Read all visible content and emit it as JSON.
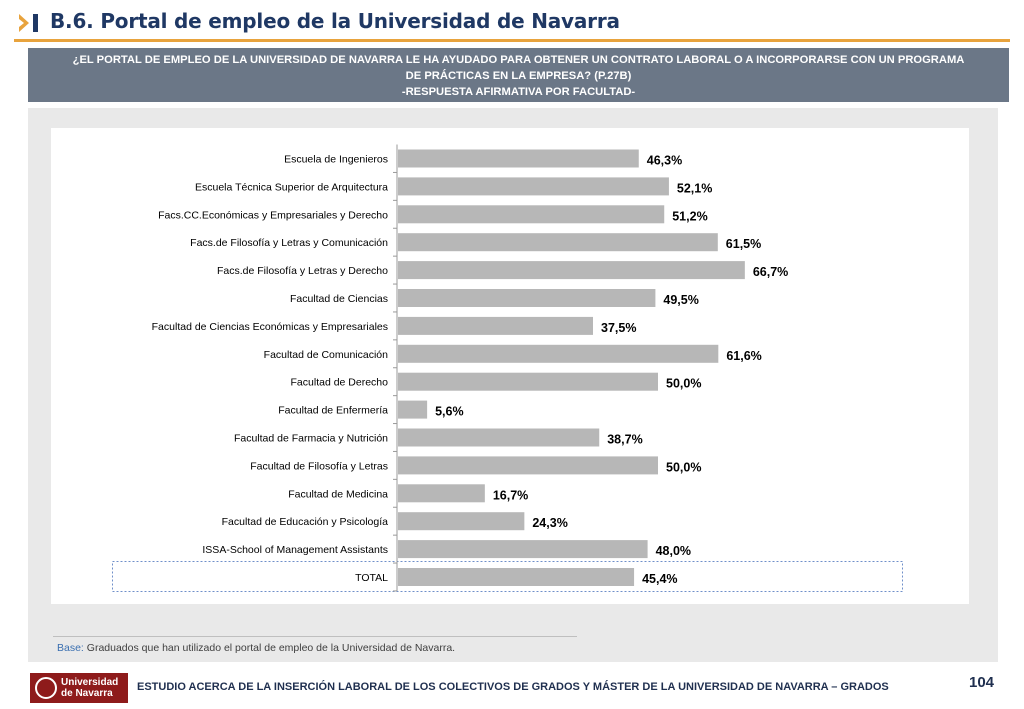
{
  "header": {
    "title": "B.6. Portal de empleo de la Universidad de Navarra"
  },
  "question": {
    "line1": "¿EL PORTAL DE EMPLEO DE LA UNIVERSIDAD DE NAVARRA LE HA AYUDADO PARA OBTENER UN CONTRATO LABORAL O A INCORPORARSE CON UN PROGRAMA",
    "line2": "DE PRÁCTICAS EN LA EMPRESA? (P.27B)",
    "line3": "-RESPUESTA AFIRMATIVA POR FACULTAD-"
  },
  "chart_data": {
    "type": "bar",
    "orientation": "horizontal",
    "categories": [
      "Escuela de Ingenieros",
      "Escuela Técnica Superior de Arquitectura",
      "Facs.CC.Económicas y Empresariales y Derecho",
      "Facs.de Filosofía y Letras y Comunicación",
      "Facs.de Filosofía y Letras y Derecho",
      "Facultad de Ciencias",
      "Facultad de Ciencias Económicas y Empresariales",
      "Facultad de Comunicación",
      "Facultad de Derecho",
      "Facultad de Enfermería",
      "Facultad de Farmacia y Nutrición",
      "Facultad de Filosofía y Letras",
      "Facultad de Medicina",
      "Facultad de Educación y Psicología",
      "ISSA-School of Management Assistants",
      "TOTAL"
    ],
    "values": [
      46.3,
      52.1,
      51.2,
      61.5,
      66.7,
      49.5,
      37.5,
      61.6,
      50.0,
      5.6,
      38.7,
      50.0,
      16.7,
      24.3,
      48.0,
      45.4
    ],
    "labels": [
      "46,3%",
      "52,1%",
      "51,2%",
      "61,5%",
      "66,7%",
      "49,5%",
      "37,5%",
      "61,6%",
      "50,0%",
      "5,6%",
      "38,7%",
      "50,0%",
      "16,7%",
      "24,3%",
      "48,0%",
      "45,4%"
    ],
    "xlim": [
      0,
      100
    ],
    "grid": false,
    "legend": "none",
    "bar_color": "#b7b7b7"
  },
  "base_note": {
    "label": "Base:",
    "text": " Graduados que han utilizado el portal de empleo de la Universidad de Navarra."
  },
  "footer": {
    "logo_line1": "Universidad",
    "logo_line2": "de Navarra",
    "text": "ESTUDIO ACERCA DE LA INSERCIÓN LABORAL DE LOS COLECTIVOS DE GRADOS Y MÁSTER DE LA UNIVERSIDAD DE NAVARRA – GRADOS",
    "page_number": "104"
  }
}
